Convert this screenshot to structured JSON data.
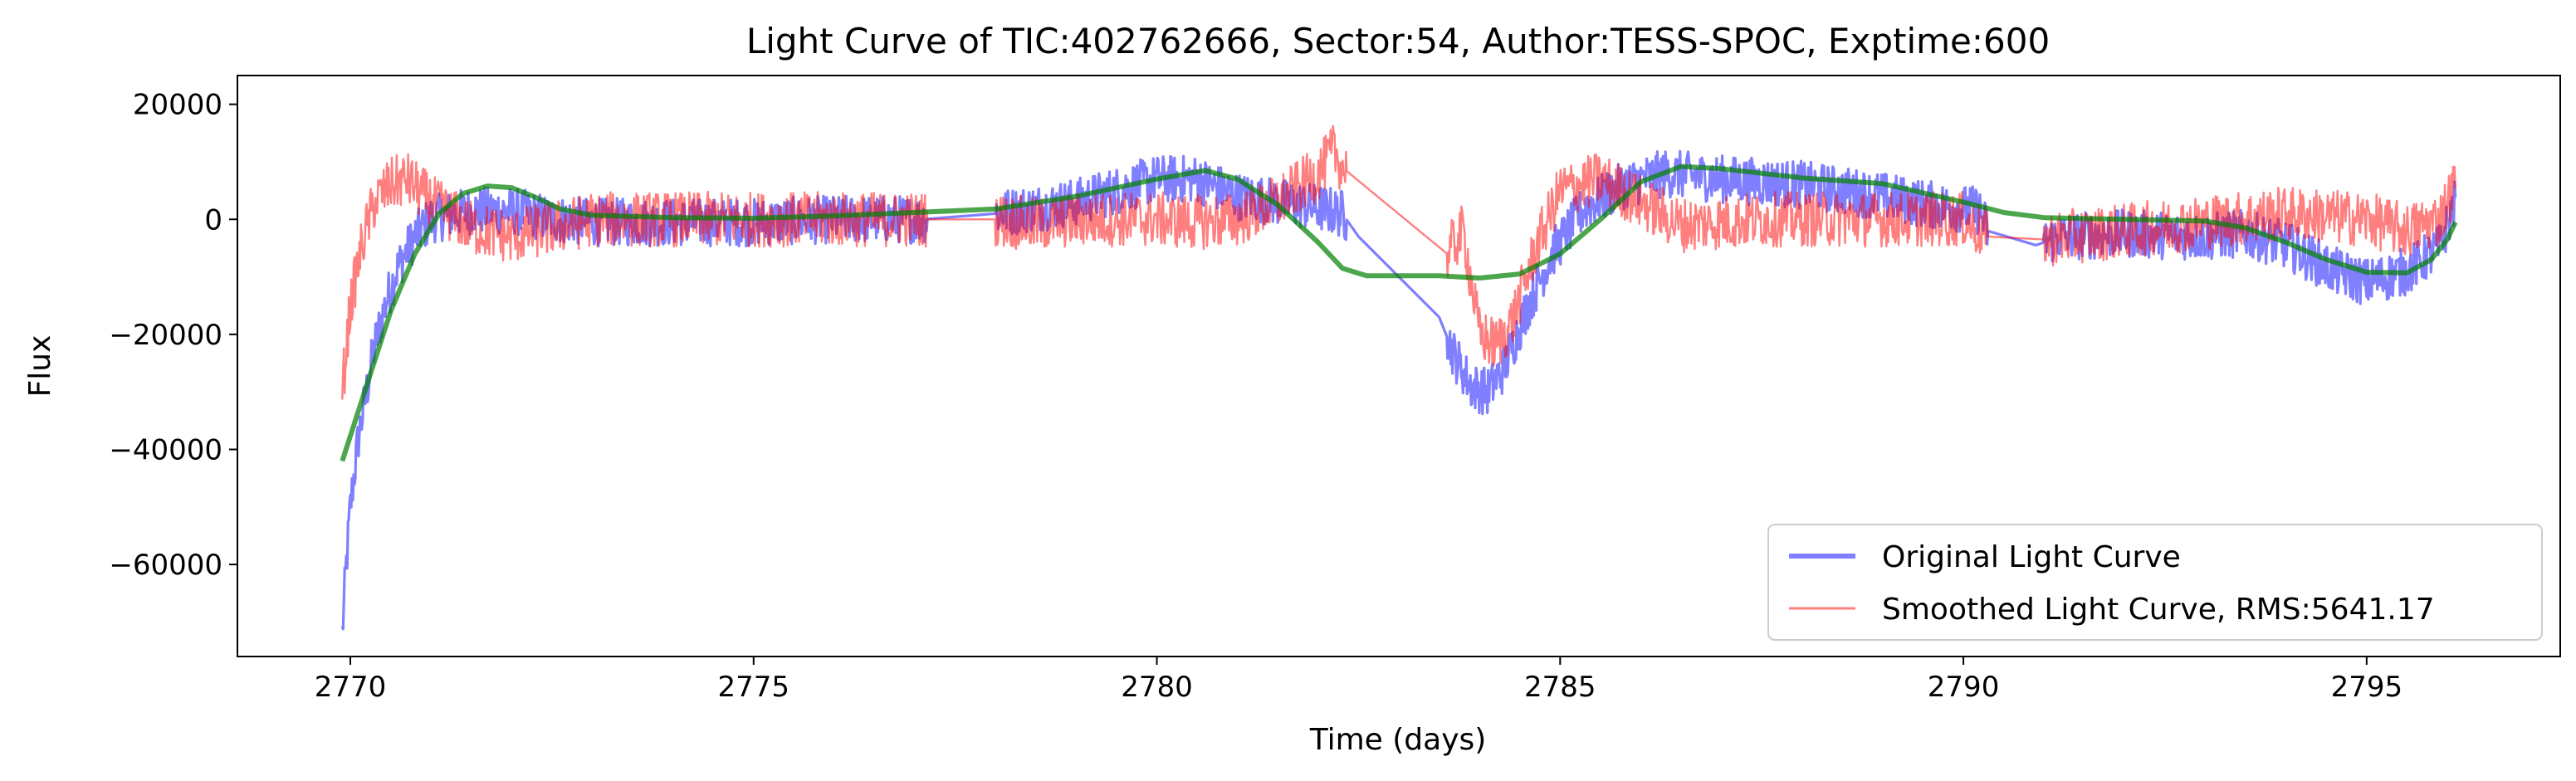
{
  "chart_data": {
    "type": "line",
    "title": "Light Curve of TIC:402762666, Sector:54, Author:TESS-SPOC, Exptime:600",
    "xlabel": "Time (days)",
    "ylabel": "Flux",
    "xlim": [
      2768.6,
      2797.4
    ],
    "ylim": [
      -76000,
      25000
    ],
    "xticks": [
      2770,
      2775,
      2780,
      2785,
      2790,
      2795
    ],
    "yticks": [
      20000,
      0,
      -20000,
      -40000,
      -60000
    ],
    "ytick_labels": [
      "20000",
      "0",
      "−20000",
      "−40000",
      "−60000"
    ],
    "grid": false,
    "legend_position": "lower-right",
    "series": [
      {
        "name": "Original Light Curve",
        "color": "#0000ff",
        "opacity": 0.5,
        "style": "noisy",
        "points": [
          [
            2769.9,
            -72000
          ],
          [
            2769.95,
            -60000
          ],
          [
            2770.0,
            -50000
          ],
          [
            2770.1,
            -38000
          ],
          [
            2770.2,
            -30000
          ],
          [
            2770.3,
            -22000
          ],
          [
            2770.45,
            -14000
          ],
          [
            2770.6,
            -8000
          ],
          [
            2770.8,
            -3000
          ],
          [
            2771.0,
            0
          ],
          [
            2771.5,
            1500
          ],
          [
            2772.0,
            1500
          ],
          [
            2772.5,
            0
          ],
          [
            2773.0,
            -500
          ],
          [
            2774.0,
            -500
          ],
          [
            2775.0,
            -500
          ],
          [
            2776.0,
            0
          ],
          [
            2777.1,
            0
          ],
          [
            2778.0,
            1000
          ],
          [
            2779.0,
            3000
          ],
          [
            2779.5,
            5000
          ],
          [
            2780.0,
            7000
          ],
          [
            2780.5,
            7000
          ],
          [
            2781.0,
            4000
          ],
          [
            2781.5,
            3000
          ],
          [
            2782.0,
            2000
          ],
          [
            2782.3,
            1000
          ],
          [
            2782.5,
            -3000
          ],
          [
            2783.0,
            -10000
          ],
          [
            2783.5,
            -17000
          ],
          [
            2783.7,
            -24000
          ],
          [
            2783.9,
            -29000
          ],
          [
            2784.1,
            -30000
          ],
          [
            2784.3,
            -26000
          ],
          [
            2784.6,
            -15000
          ],
          [
            2784.9,
            -6000
          ],
          [
            2785.3,
            2000
          ],
          [
            2785.8,
            6000
          ],
          [
            2786.3,
            8000
          ],
          [
            2787.0,
            7000
          ],
          [
            2788.0,
            6000
          ],
          [
            2789.0,
            4000
          ],
          [
            2789.6,
            2500
          ],
          [
            2790.2,
            1500
          ],
          [
            2790.3,
            -2000
          ],
          [
            2790.9,
            -4500
          ],
          [
            2791.2,
            -3000
          ],
          [
            2792.0,
            -2500
          ],
          [
            2793.0,
            -3000
          ],
          [
            2793.5,
            -2500
          ],
          [
            2794.0,
            -4500
          ],
          [
            2794.6,
            -9000
          ],
          [
            2795.0,
            -11000
          ],
          [
            2795.5,
            -9000
          ],
          [
            2795.9,
            -5000
          ],
          [
            2796.1,
            3000
          ]
        ]
      },
      {
        "name": "Smoothed Light Curve, RMS:5641.17",
        "color": "#ff0000",
        "opacity": 0.5,
        "style": "noisy",
        "points": [
          [
            2769.9,
            -30000
          ],
          [
            2770.0,
            -15000
          ],
          [
            2770.15,
            -4000
          ],
          [
            2770.3,
            3000
          ],
          [
            2770.5,
            6000
          ],
          [
            2770.7,
            7000
          ],
          [
            2771.0,
            3000
          ],
          [
            2771.5,
            -1500
          ],
          [
            2772.0,
            -3000
          ],
          [
            2772.5,
            -1500
          ],
          [
            2773.0,
            0
          ],
          [
            2774.0,
            0
          ],
          [
            2775.0,
            0
          ],
          [
            2776.0,
            0
          ],
          [
            2777.0,
            0
          ],
          [
            2778.0,
            0
          ],
          [
            2778.5,
            -1000
          ],
          [
            2779.0,
            0
          ],
          [
            2780.0,
            0
          ],
          [
            2780.5,
            -500
          ],
          [
            2781.0,
            0
          ],
          [
            2781.5,
            3000
          ],
          [
            2782.0,
            8000
          ],
          [
            2782.2,
            12000
          ],
          [
            2782.3,
            9000
          ],
          [
            2783.6,
            -6000
          ],
          [
            2783.8,
            -2000
          ],
          [
            2784.0,
            -20000
          ],
          [
            2784.2,
            -22000
          ],
          [
            2784.4,
            -18000
          ],
          [
            2784.7,
            -5000
          ],
          [
            2785.0,
            5000
          ],
          [
            2785.5,
            7000
          ],
          [
            2786.0,
            3000
          ],
          [
            2786.5,
            -1000
          ],
          [
            2787.5,
            0
          ],
          [
            2789.0,
            0
          ],
          [
            2790.0,
            0
          ],
          [
            2790.3,
            -3000
          ],
          [
            2791.0,
            -3500
          ],
          [
            2792.0,
            -2000
          ],
          [
            2793.0,
            -500
          ],
          [
            2794.0,
            1000
          ],
          [
            2795.0,
            0
          ],
          [
            2795.5,
            -2000
          ],
          [
            2795.9,
            0
          ],
          [
            2796.1,
            6000
          ]
        ]
      },
      {
        "name": "",
        "color": "#008000",
        "opacity": 0.7,
        "style": "smooth",
        "points": [
          [
            2769.9,
            -42000
          ],
          [
            2770.2,
            -29000
          ],
          [
            2770.5,
            -16000
          ],
          [
            2770.8,
            -6000
          ],
          [
            2771.1,
            1000
          ],
          [
            2771.4,
            4500
          ],
          [
            2771.7,
            5800
          ],
          [
            2772.0,
            5500
          ],
          [
            2772.3,
            3800
          ],
          [
            2772.6,
            1800
          ],
          [
            2773.0,
            700
          ],
          [
            2774.0,
            300
          ],
          [
            2775.0,
            200
          ],
          [
            2776.0,
            600
          ],
          [
            2777.0,
            1200
          ],
          [
            2778.0,
            1800
          ],
          [
            2779.0,
            4000
          ],
          [
            2780.0,
            7000
          ],
          [
            2780.6,
            8500
          ],
          [
            2781.0,
            7000
          ],
          [
            2781.5,
            2500
          ],
          [
            2782.0,
            -4000
          ],
          [
            2782.3,
            -8500
          ],
          [
            2782.6,
            -9800
          ],
          [
            2783.5,
            -9800
          ],
          [
            2784.0,
            -10200
          ],
          [
            2784.5,
            -9500
          ],
          [
            2785.0,
            -6000
          ],
          [
            2785.5,
            0
          ],
          [
            2786.0,
            6500
          ],
          [
            2786.5,
            9200
          ],
          [
            2787.0,
            8800
          ],
          [
            2788.0,
            7200
          ],
          [
            2789.0,
            6200
          ],
          [
            2790.0,
            3000
          ],
          [
            2790.5,
            1200
          ],
          [
            2791.0,
            300
          ],
          [
            2792.0,
            0
          ],
          [
            2793.0,
            -300
          ],
          [
            2793.5,
            -1500
          ],
          [
            2794.0,
            -4000
          ],
          [
            2794.5,
            -7000
          ],
          [
            2795.0,
            -9200
          ],
          [
            2795.5,
            -9300
          ],
          [
            2795.8,
            -7000
          ],
          [
            2796.0,
            -3500
          ],
          [
            2796.1,
            -500
          ]
        ]
      }
    ]
  }
}
